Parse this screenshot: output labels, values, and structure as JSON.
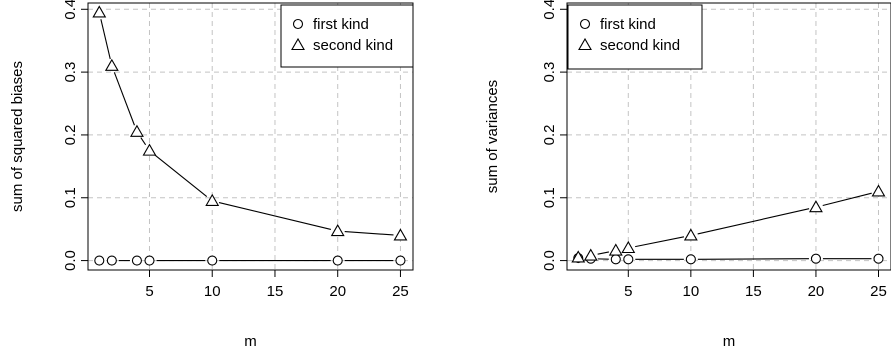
{
  "chart_data": [
    {
      "type": "line",
      "xlabel": "m",
      "ylabel": "sum of squared biases",
      "xlim": [
        0.1,
        26
      ],
      "ylim": [
        -0.015,
        0.41
      ],
      "xticks": [
        5,
        10,
        15,
        20,
        25
      ],
      "yticks": [
        0.0,
        0.1,
        0.2,
        0.3,
        0.4
      ],
      "grid": true,
      "legend_position": "top-right",
      "x": [
        1,
        2,
        4,
        5,
        10,
        20,
        25
      ],
      "series": [
        {
          "name": "first kind",
          "marker": "circle",
          "values": [
            0.0,
            0.0,
            0.0,
            0.0,
            0.0,
            0.0,
            0.0
          ]
        },
        {
          "name": "second kind",
          "marker": "triangle",
          "values": [
            0.395,
            0.31,
            0.205,
            0.175,
            0.095,
            0.047,
            0.04
          ]
        }
      ]
    },
    {
      "type": "line",
      "xlabel": "m",
      "ylabel": "sum of variances",
      "xlim": [
        0.1,
        26
      ],
      "ylim": [
        -0.015,
        0.41
      ],
      "xticks": [
        5,
        10,
        15,
        20,
        25
      ],
      "yticks": [
        0.0,
        0.1,
        0.2,
        0.3,
        0.4
      ],
      "grid": true,
      "legend_position": "top-left",
      "x": [
        1,
        2,
        4,
        5,
        10,
        20,
        25
      ],
      "series": [
        {
          "name": "first kind",
          "marker": "circle",
          "values": [
            0.004,
            0.003,
            0.002,
            0.002,
            0.002,
            0.003,
            0.003
          ]
        },
        {
          "name": "second kind",
          "marker": "triangle",
          "values": [
            0.005,
            0.008,
            0.016,
            0.02,
            0.04,
            0.085,
            0.11
          ]
        }
      ]
    }
  ]
}
